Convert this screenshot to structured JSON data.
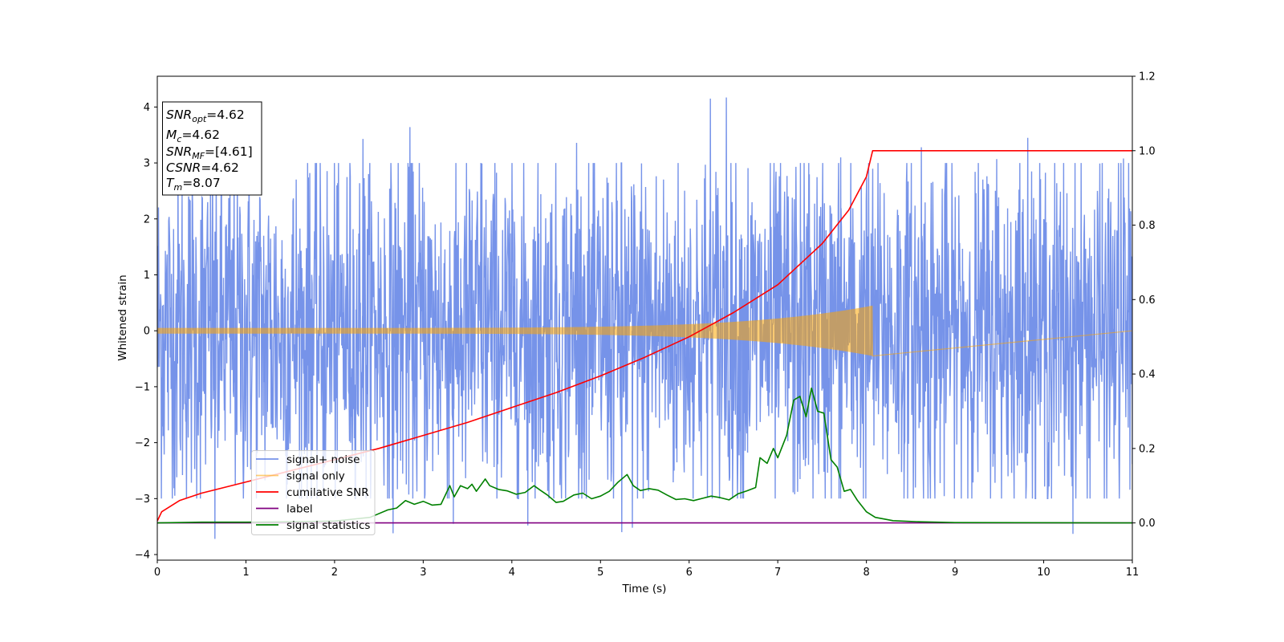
{
  "chart_data": {
    "type": "line",
    "xlabel": "Time (s)",
    "ylabel": "Whitened strain",
    "xlim": [
      0,
      11
    ],
    "ylim_left": [
      -4.1,
      4.55
    ],
    "ylim_right": [
      -0.1,
      1.2
    ],
    "x_ticks": [
      "0",
      "1",
      "2",
      "3",
      "4",
      "5",
      "6",
      "7",
      "8",
      "9",
      "10",
      "11"
    ],
    "y_ticks_left": [
      "−4",
      "−3",
      "−2",
      "−1",
      "0",
      "1",
      "2",
      "3",
      "4"
    ],
    "y_ticks_right": [
      "0.0",
      "0.2",
      "0.4",
      "0.6",
      "0.8",
      "1.0",
      "1.2"
    ],
    "grid": false,
    "legend_position": "lower-left",
    "info_box": {
      "lines": [
        {
          "label": "SNR",
          "sub": "opt",
          "value": "=4.62"
        },
        {
          "label": "M",
          "sub": "c",
          "value": "=4.62"
        },
        {
          "label": "SNR",
          "sub": "MF",
          "value": "=[4.61]"
        },
        {
          "label": "CSNR",
          "sub": "",
          "value": "=4.62"
        },
        {
          "label": "T",
          "sub": "m",
          "value": "=8.07"
        }
      ]
    },
    "series": [
      {
        "name": "signal+ noise",
        "axis": "left",
        "color": "#4169e1",
        "opacity": 0.72,
        "kind": "noise",
        "description_values": {
          "typical_amplitude": 2.2,
          "max": 4.17,
          "min": -3.72
        },
        "spikes": [
          [
            0.65,
            -3.72
          ],
          [
            1.72,
            2.82
          ],
          [
            2.32,
            3.43
          ],
          [
            2.66,
            -3.62
          ],
          [
            2.85,
            3.64
          ],
          [
            3.34,
            -3.45
          ],
          [
            4.18,
            -3.48
          ],
          [
            5.24,
            -3.6
          ],
          [
            5.36,
            -3.52
          ],
          [
            6.24,
            4.15
          ],
          [
            6.42,
            4.17
          ],
          [
            7.35,
            3.0
          ],
          [
            8.62,
            3.28
          ],
          [
            9.82,
            3.45
          ],
          [
            10.33,
            -3.63
          ],
          [
            4.73,
            3.36
          ],
          [
            3.65,
            3.0
          ],
          [
            7.71,
            3.1
          ],
          [
            9.47,
            3.07
          ],
          [
            10.9,
            3.08
          ]
        ]
      },
      {
        "name": "signal only",
        "axis": "left",
        "color": "#ffa500",
        "opacity": 0.55,
        "kind": "chirp",
        "start_x": 0,
        "end_x": 8.07,
        "start_amplitude": 0.05,
        "end_amplitude": 0.45
      },
      {
        "name": "cumilative SNR",
        "axis": "right",
        "color": "#ff0000",
        "x": [
          0,
          0.05,
          0.25,
          0.5,
          1,
          1.5,
          2,
          2.5,
          3,
          3.5,
          4,
          4.5,
          5,
          5.5,
          6,
          6.5,
          7,
          7.5,
          7.8,
          8.0,
          8.07,
          11
        ],
        "y": [
          0.005,
          0.03,
          0.06,
          0.08,
          0.11,
          0.14,
          0.17,
          0.2,
          0.235,
          0.27,
          0.31,
          0.35,
          0.395,
          0.445,
          0.5,
          0.565,
          0.64,
          0.75,
          0.84,
          0.93,
          1.0,
          1.0
        ]
      },
      {
        "name": "label",
        "axis": "right",
        "color": "#800080",
        "x": [
          0,
          11
        ],
        "y": [
          0,
          0
        ]
      },
      {
        "name": "signal statistics",
        "axis": "right",
        "color": "#008000",
        "x": [
          0,
          0.5,
          1,
          1.5,
          2,
          2.2,
          2.4,
          2.6,
          2.7,
          2.8,
          2.9,
          3.0,
          3.1,
          3.2,
          3.3,
          3.35,
          3.42,
          3.5,
          3.55,
          3.6,
          3.7,
          3.75,
          3.85,
          3.95,
          4.05,
          4.15,
          4.25,
          4.32,
          4.4,
          4.5,
          4.58,
          4.7,
          4.8,
          4.9,
          5.0,
          5.1,
          5.2,
          5.3,
          5.37,
          5.45,
          5.55,
          5.65,
          5.75,
          5.85,
          5.95,
          6.05,
          6.15,
          6.25,
          6.35,
          6.45,
          6.55,
          6.65,
          6.75,
          6.8,
          6.88,
          6.95,
          7.0,
          7.1,
          7.18,
          7.25,
          7.32,
          7.38,
          7.45,
          7.52,
          7.6,
          7.67,
          7.75,
          7.82,
          7.9,
          8.0,
          8.1,
          8.3,
          8.6,
          9.0,
          11
        ],
        "y": [
          0,
          0.002,
          0.002,
          0.003,
          0.005,
          0.01,
          0.015,
          0.035,
          0.04,
          0.06,
          0.05,
          0.058,
          0.048,
          0.05,
          0.1,
          0.07,
          0.1,
          0.092,
          0.104,
          0.085,
          0.118,
          0.1,
          0.09,
          0.086,
          0.077,
          0.082,
          0.1,
          0.088,
          0.075,
          0.055,
          0.058,
          0.075,
          0.08,
          0.065,
          0.072,
          0.085,
          0.11,
          0.13,
          0.1,
          0.087,
          0.092,
          0.088,
          0.075,
          0.063,
          0.065,
          0.06,
          0.066,
          0.072,
          0.068,
          0.062,
          0.078,
          0.086,
          0.095,
          0.175,
          0.16,
          0.2,
          0.175,
          0.235,
          0.33,
          0.34,
          0.285,
          0.362,
          0.3,
          0.295,
          0.17,
          0.15,
          0.085,
          0.09,
          0.06,
          0.03,
          0.015,
          0.006,
          0.003,
          0.001,
          0
        ]
      }
    ]
  }
}
